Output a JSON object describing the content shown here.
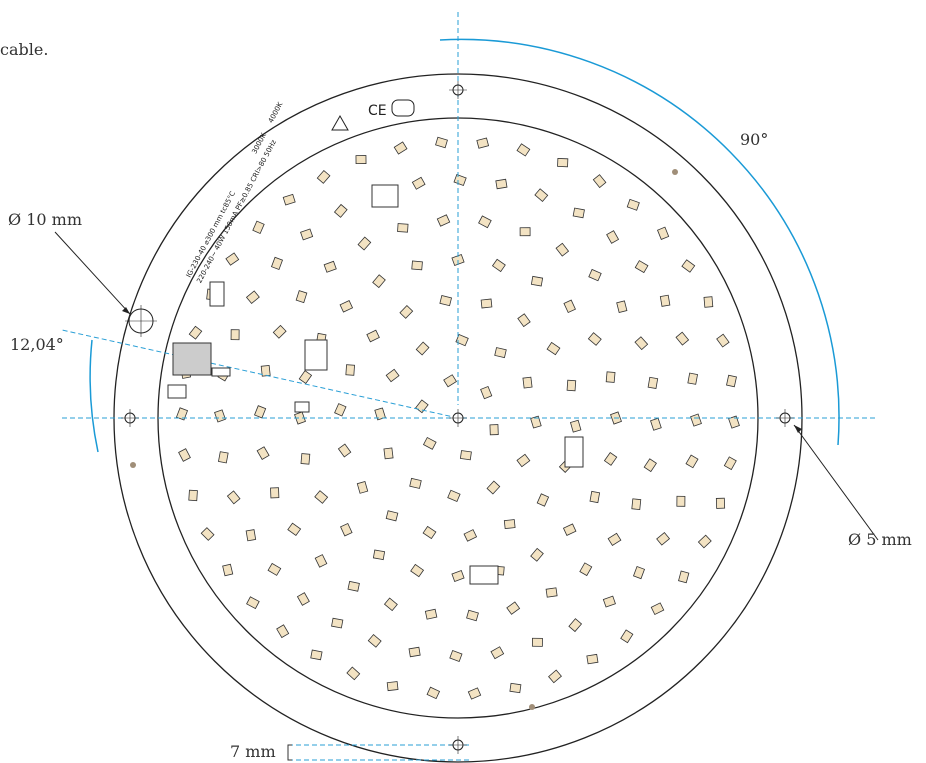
{
  "header": {
    "caption": "cable."
  },
  "dimensions": {
    "angle_main": "90°",
    "hole_large": "Ø 10 mm",
    "angle_offset": "12,04°",
    "hole_small": "Ø 5 mm",
    "edge_offset": "7 mm"
  },
  "pcb_labels": {
    "model": "IG-230-40  ⌀300 mm  tc85°C",
    "ratings": "220-240~  40W  150mA  PF≥0.85  CRI>80  50Hz",
    "cct_a": "3000K",
    "cct_b": "4000K",
    "mark": "CE"
  }
}
